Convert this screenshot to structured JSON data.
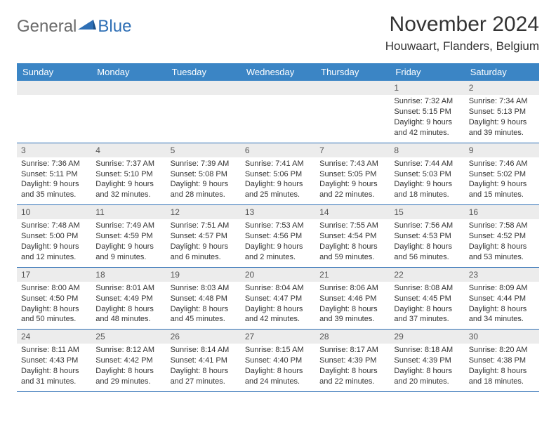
{
  "logo": {
    "part1": "General",
    "part2": "Blue"
  },
  "title": "November 2024",
  "location": "Houwaart, Flanders, Belgium",
  "colors": {
    "header_bg": "#3b85c5",
    "border": "#2e6fb5",
    "band": "#ececec",
    "text": "#333333"
  },
  "days_of_week": [
    "Sunday",
    "Monday",
    "Tuesday",
    "Wednesday",
    "Thursday",
    "Friday",
    "Saturday"
  ],
  "weeks": [
    [
      {
        "n": "",
        "sunrise": "",
        "sunset": "",
        "daylight": ""
      },
      {
        "n": "",
        "sunrise": "",
        "sunset": "",
        "daylight": ""
      },
      {
        "n": "",
        "sunrise": "",
        "sunset": "",
        "daylight": ""
      },
      {
        "n": "",
        "sunrise": "",
        "sunset": "",
        "daylight": ""
      },
      {
        "n": "",
        "sunrise": "",
        "sunset": "",
        "daylight": ""
      },
      {
        "n": "1",
        "sunrise": "Sunrise: 7:32 AM",
        "sunset": "Sunset: 5:15 PM",
        "daylight": "Daylight: 9 hours and 42 minutes."
      },
      {
        "n": "2",
        "sunrise": "Sunrise: 7:34 AM",
        "sunset": "Sunset: 5:13 PM",
        "daylight": "Daylight: 9 hours and 39 minutes."
      }
    ],
    [
      {
        "n": "3",
        "sunrise": "Sunrise: 7:36 AM",
        "sunset": "Sunset: 5:11 PM",
        "daylight": "Daylight: 9 hours and 35 minutes."
      },
      {
        "n": "4",
        "sunrise": "Sunrise: 7:37 AM",
        "sunset": "Sunset: 5:10 PM",
        "daylight": "Daylight: 9 hours and 32 minutes."
      },
      {
        "n": "5",
        "sunrise": "Sunrise: 7:39 AM",
        "sunset": "Sunset: 5:08 PM",
        "daylight": "Daylight: 9 hours and 28 minutes."
      },
      {
        "n": "6",
        "sunrise": "Sunrise: 7:41 AM",
        "sunset": "Sunset: 5:06 PM",
        "daylight": "Daylight: 9 hours and 25 minutes."
      },
      {
        "n": "7",
        "sunrise": "Sunrise: 7:43 AM",
        "sunset": "Sunset: 5:05 PM",
        "daylight": "Daylight: 9 hours and 22 minutes."
      },
      {
        "n": "8",
        "sunrise": "Sunrise: 7:44 AM",
        "sunset": "Sunset: 5:03 PM",
        "daylight": "Daylight: 9 hours and 18 minutes."
      },
      {
        "n": "9",
        "sunrise": "Sunrise: 7:46 AM",
        "sunset": "Sunset: 5:02 PM",
        "daylight": "Daylight: 9 hours and 15 minutes."
      }
    ],
    [
      {
        "n": "10",
        "sunrise": "Sunrise: 7:48 AM",
        "sunset": "Sunset: 5:00 PM",
        "daylight": "Daylight: 9 hours and 12 minutes."
      },
      {
        "n": "11",
        "sunrise": "Sunrise: 7:49 AM",
        "sunset": "Sunset: 4:59 PM",
        "daylight": "Daylight: 9 hours and 9 minutes."
      },
      {
        "n": "12",
        "sunrise": "Sunrise: 7:51 AM",
        "sunset": "Sunset: 4:57 PM",
        "daylight": "Daylight: 9 hours and 6 minutes."
      },
      {
        "n": "13",
        "sunrise": "Sunrise: 7:53 AM",
        "sunset": "Sunset: 4:56 PM",
        "daylight": "Daylight: 9 hours and 2 minutes."
      },
      {
        "n": "14",
        "sunrise": "Sunrise: 7:55 AM",
        "sunset": "Sunset: 4:54 PM",
        "daylight": "Daylight: 8 hours and 59 minutes."
      },
      {
        "n": "15",
        "sunrise": "Sunrise: 7:56 AM",
        "sunset": "Sunset: 4:53 PM",
        "daylight": "Daylight: 8 hours and 56 minutes."
      },
      {
        "n": "16",
        "sunrise": "Sunrise: 7:58 AM",
        "sunset": "Sunset: 4:52 PM",
        "daylight": "Daylight: 8 hours and 53 minutes."
      }
    ],
    [
      {
        "n": "17",
        "sunrise": "Sunrise: 8:00 AM",
        "sunset": "Sunset: 4:50 PM",
        "daylight": "Daylight: 8 hours and 50 minutes."
      },
      {
        "n": "18",
        "sunrise": "Sunrise: 8:01 AM",
        "sunset": "Sunset: 4:49 PM",
        "daylight": "Daylight: 8 hours and 48 minutes."
      },
      {
        "n": "19",
        "sunrise": "Sunrise: 8:03 AM",
        "sunset": "Sunset: 4:48 PM",
        "daylight": "Daylight: 8 hours and 45 minutes."
      },
      {
        "n": "20",
        "sunrise": "Sunrise: 8:04 AM",
        "sunset": "Sunset: 4:47 PM",
        "daylight": "Daylight: 8 hours and 42 minutes."
      },
      {
        "n": "21",
        "sunrise": "Sunrise: 8:06 AM",
        "sunset": "Sunset: 4:46 PM",
        "daylight": "Daylight: 8 hours and 39 minutes."
      },
      {
        "n": "22",
        "sunrise": "Sunrise: 8:08 AM",
        "sunset": "Sunset: 4:45 PM",
        "daylight": "Daylight: 8 hours and 37 minutes."
      },
      {
        "n": "23",
        "sunrise": "Sunrise: 8:09 AM",
        "sunset": "Sunset: 4:44 PM",
        "daylight": "Daylight: 8 hours and 34 minutes."
      }
    ],
    [
      {
        "n": "24",
        "sunrise": "Sunrise: 8:11 AM",
        "sunset": "Sunset: 4:43 PM",
        "daylight": "Daylight: 8 hours and 31 minutes."
      },
      {
        "n": "25",
        "sunrise": "Sunrise: 8:12 AM",
        "sunset": "Sunset: 4:42 PM",
        "daylight": "Daylight: 8 hours and 29 minutes."
      },
      {
        "n": "26",
        "sunrise": "Sunrise: 8:14 AM",
        "sunset": "Sunset: 4:41 PM",
        "daylight": "Daylight: 8 hours and 27 minutes."
      },
      {
        "n": "27",
        "sunrise": "Sunrise: 8:15 AM",
        "sunset": "Sunset: 4:40 PM",
        "daylight": "Daylight: 8 hours and 24 minutes."
      },
      {
        "n": "28",
        "sunrise": "Sunrise: 8:17 AM",
        "sunset": "Sunset: 4:39 PM",
        "daylight": "Daylight: 8 hours and 22 minutes."
      },
      {
        "n": "29",
        "sunrise": "Sunrise: 8:18 AM",
        "sunset": "Sunset: 4:39 PM",
        "daylight": "Daylight: 8 hours and 20 minutes."
      },
      {
        "n": "30",
        "sunrise": "Sunrise: 8:20 AM",
        "sunset": "Sunset: 4:38 PM",
        "daylight": "Daylight: 8 hours and 18 minutes."
      }
    ]
  ]
}
